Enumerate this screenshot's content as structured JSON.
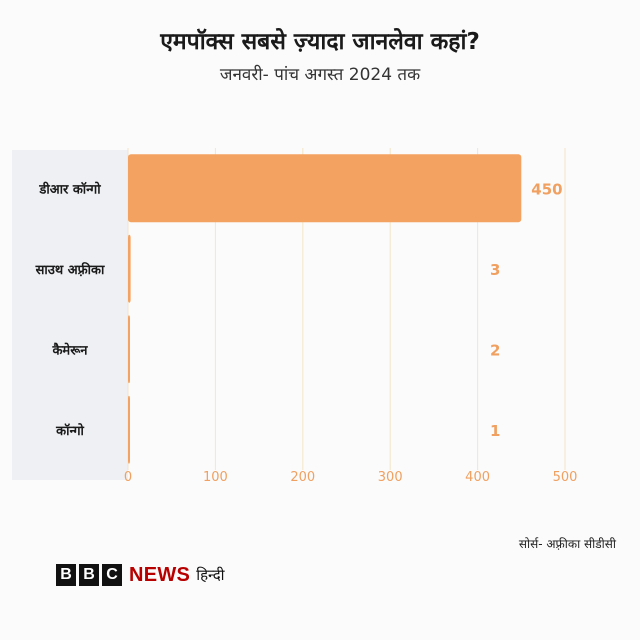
{
  "title": "एमपॉक्स सबसे ज़्यादा जानलेवा कहां?",
  "subtitle": "जनवरी- पांच अगस्त 2024 तक",
  "source": "सोर्स- अफ़्रीका सीडीसी",
  "logo": {
    "letters": [
      "B",
      "B",
      "C"
    ],
    "news": "NEWS",
    "language": "हिन्दी"
  },
  "colors": {
    "bar": "#f4a261",
    "value_label": "#f0a060",
    "axis_tick": "#f0a060",
    "label_panel": "#eef0f3",
    "grid": "#f3e6c8",
    "brand": "#b80000"
  },
  "chart_data": {
    "type": "bar",
    "orientation": "horizontal",
    "categories": [
      "डीआर कॉन्गो",
      "साउथ अफ़्रीका",
      "कैमेरून",
      "कॉन्गो"
    ],
    "values": [
      450,
      3,
      2,
      1
    ],
    "value_labels": [
      "450",
      "3",
      "2",
      "1"
    ],
    "xticks": [
      0,
      100,
      200,
      300,
      400,
      500
    ],
    "xtick_labels": [
      "0",
      "100",
      "200",
      "300",
      "400",
      "500"
    ],
    "xlim": [
      0,
      500
    ],
    "grid": true,
    "xlabel": "",
    "ylabel": ""
  }
}
